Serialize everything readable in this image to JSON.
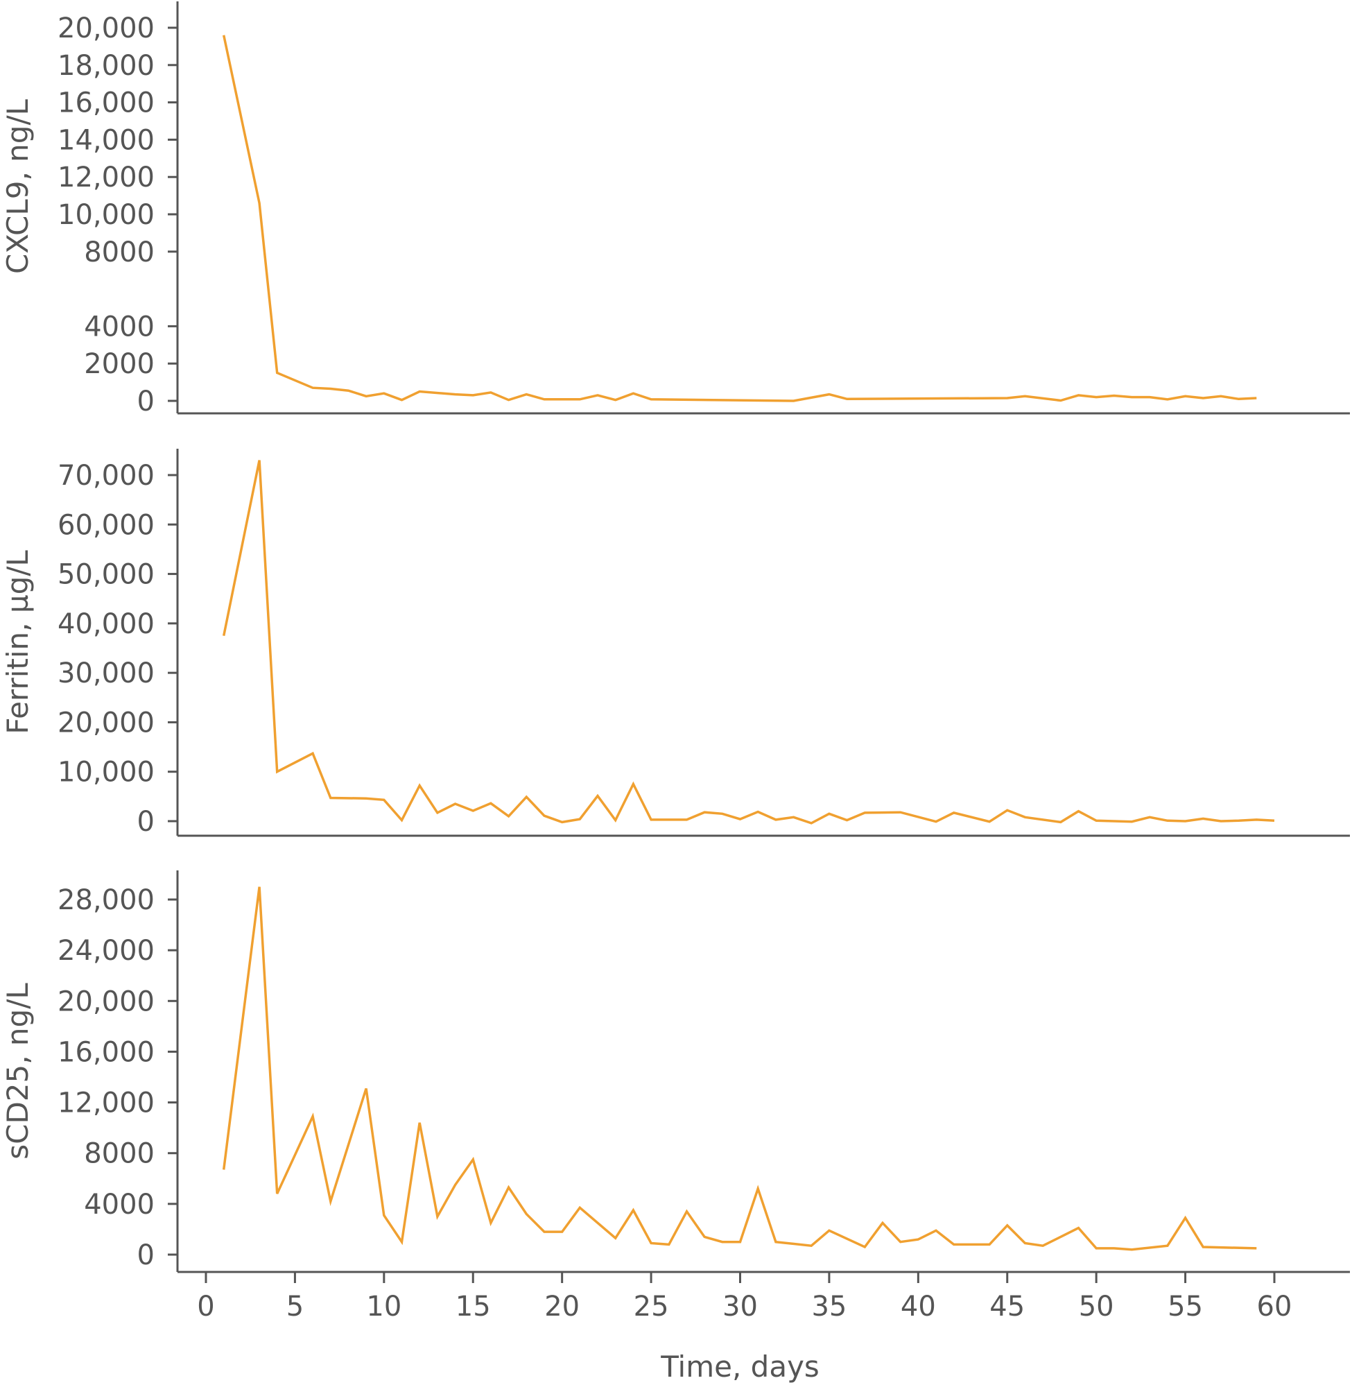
{
  "colors": {
    "series": "#F0A030",
    "axis": "#555555",
    "text": "#555555"
  },
  "chart_data": [
    {
      "type": "line",
      "ylabel": "CXCL9, ng/L",
      "xlim": [
        0,
        60
      ],
      "ylim": [
        0,
        20000
      ],
      "yticks": [
        0,
        2000,
        4000,
        8000,
        10000,
        12000,
        14000,
        16000,
        18000,
        20000
      ],
      "ytick_labels": [
        "0",
        "2000",
        "4000",
        "8000",
        "10,000",
        "12,000",
        "14,000",
        "16,000",
        "18,000",
        "20,000"
      ],
      "x": [
        1,
        3,
        4,
        6,
        7,
        8,
        9,
        10,
        11,
        12,
        14,
        15,
        16,
        17,
        18,
        19,
        21,
        22,
        23,
        24,
        25,
        33,
        35,
        36,
        45,
        46,
        48,
        49,
        50,
        51,
        52,
        53,
        54,
        55,
        56,
        57,
        58,
        59
      ],
      "y": [
        19600,
        10600,
        1500,
        700,
        650,
        550,
        250,
        400,
        50,
        500,
        350,
        300,
        450,
        50,
        350,
        80,
        80,
        300,
        50,
        400,
        80,
        0,
        350,
        100,
        150,
        250,
        20,
        300,
        200,
        280,
        200,
        200,
        80,
        250,
        150,
        250,
        100,
        150
      ],
      "grid": false
    },
    {
      "type": "line",
      "ylabel": "Ferritin, µg/L",
      "xlim": [
        0,
        60
      ],
      "ylim": [
        0,
        70000
      ],
      "yticks": [
        0,
        10000,
        20000,
        30000,
        40000,
        50000,
        60000,
        70000
      ],
      "ytick_labels": [
        "0",
        "10,000",
        "20,000",
        "30,000",
        "40,000",
        "50,000",
        "60,000",
        "70,000"
      ],
      "x": [
        1,
        3,
        4,
        6,
        7,
        9,
        10,
        11,
        12,
        13,
        14,
        15,
        16,
        17,
        18,
        19,
        20,
        21,
        22,
        23,
        24,
        25,
        27,
        28,
        29,
        30,
        31,
        32,
        33,
        34,
        35,
        36,
        37,
        39,
        41,
        42,
        44,
        45,
        46,
        48,
        49,
        50,
        52,
        53,
        54,
        55,
        56,
        57,
        58,
        59,
        60
      ],
      "y": [
        37500,
        73000,
        10000,
        13700,
        4700,
        4600,
        4300,
        200,
        7200,
        1700,
        3500,
        2100,
        3600,
        1000,
        4900,
        1100,
        -200,
        400,
        5100,
        200,
        7500,
        300,
        300,
        1800,
        1500,
        400,
        1900,
        300,
        800,
        -400,
        1500,
        200,
        1700,
        1800,
        -100,
        1700,
        -100,
        2200,
        800,
        -200,
        2000,
        100,
        -100,
        800,
        100,
        0,
        500,
        0,
        100,
        300,
        100
      ],
      "grid": false
    },
    {
      "type": "line",
      "ylabel": "sCD25, ng/L",
      "xlabel": "Time, days",
      "xlim": [
        0,
        60
      ],
      "xticks": [
        0,
        5,
        10,
        15,
        20,
        25,
        30,
        35,
        40,
        45,
        50,
        55,
        60
      ],
      "xtick_labels": [
        "0",
        "5",
        "10",
        "15",
        "20",
        "25",
        "30",
        "35",
        "40",
        "45",
        "50",
        "55",
        "60"
      ],
      "ylim": [
        0,
        28000
      ],
      "yticks": [
        0,
        4000,
        8000,
        12000,
        16000,
        20000,
        24000,
        28000
      ],
      "ytick_labels": [
        "0",
        "4000",
        "8000",
        "12,000",
        "16,000",
        "20,000",
        "24,000",
        "28,000"
      ],
      "x": [
        1,
        3,
        4,
        6,
        7,
        9,
        10,
        11,
        12,
        13,
        14,
        15,
        16,
        17,
        18,
        19,
        20,
        21,
        23,
        24,
        25,
        26,
        27,
        28,
        29,
        30,
        31,
        32,
        34,
        35,
        37,
        38,
        39,
        40,
        41,
        42,
        44,
        45,
        46,
        47,
        49,
        50,
        51,
        52,
        54,
        55,
        56,
        59
      ],
      "y": [
        6700,
        29000,
        4800,
        10900,
        4200,
        13100,
        3100,
        1000,
        10400,
        3000,
        5500,
        7500,
        2500,
        5300,
        3200,
        1800,
        1800,
        3700,
        1300,
        3500,
        900,
        800,
        3400,
        1400,
        1000,
        1000,
        5200,
        1000,
        700,
        1900,
        600,
        2500,
        1000,
        1200,
        1900,
        800,
        800,
        2300,
        900,
        700,
        2100,
        500,
        500,
        400,
        700,
        2900,
        600,
        500
      ],
      "grid": false
    }
  ]
}
